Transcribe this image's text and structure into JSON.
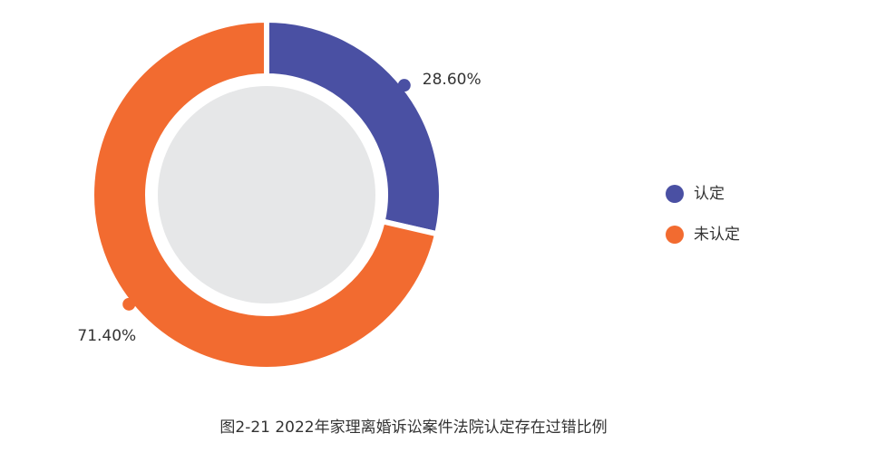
{
  "chart_data": {
    "type": "donut",
    "title": "图2-21  2022年家理离婚诉讼案件法院认定存在过错比例",
    "categories": [
      "认定",
      "未认定"
    ],
    "values": [
      28.6,
      71.4
    ],
    "value_labels": [
      "28.60%",
      "71.40%"
    ],
    "colors": [
      "#4a50a3",
      "#f26b30"
    ],
    "legend": "right"
  }
}
